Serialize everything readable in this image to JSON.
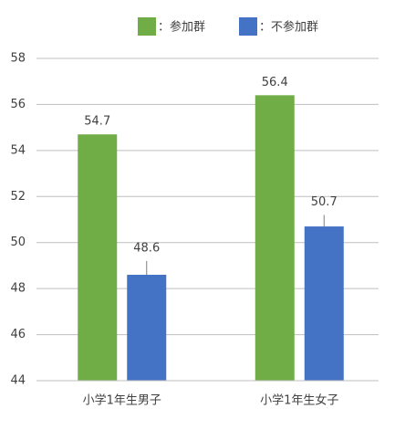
{
  "chart_data": {
    "type": "bar",
    "categories": [
      "小学1年生男子",
      "小学1年生女子"
    ],
    "series": [
      {
        "name": "：参加群",
        "color": "#70ad47",
        "values": [
          54.7,
          56.4
        ],
        "errors": [
          0,
          0
        ]
      },
      {
        "name": "：不参加群",
        "color": "#4472c4",
        "values": [
          48.6,
          50.7
        ],
        "errors": [
          0.6,
          0.5
        ]
      }
    ],
    "ylim": [
      44,
      58
    ],
    "yticks": [
      44,
      46,
      48,
      50,
      52,
      54,
      56,
      58
    ],
    "grid": true
  }
}
